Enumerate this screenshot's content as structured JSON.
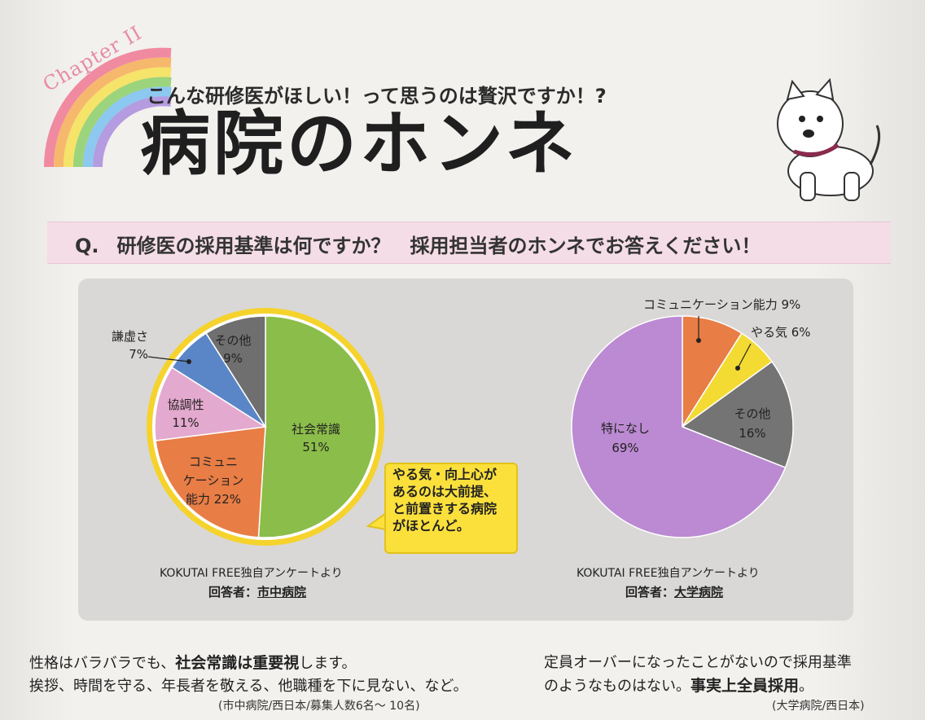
{
  "chapter": "Chapter II",
  "subtitle": "こんな研修医がほしい！って思うのは贅沢ですか！?",
  "title": "病院のホンネ",
  "question": {
    "label": "Q.",
    "text": "研修医の採用基準は何ですか？　採用担当者のホンネでお答えください！"
  },
  "colors": {
    "green": "#8bbd4a",
    "orange": "#e87d45",
    "pink": "#e4a9ce",
    "blue": "#5a86c7",
    "gray": "#6f6f6f",
    "purple": "#bb8ad2",
    "yellow": "#f3db33",
    "dark_gray": "#747474",
    "ring": "#f5d32c",
    "question_bar": "#f4dde6"
  },
  "chart_data": [
    {
      "type": "pie",
      "source": "KOKUTAI FREE独自アンケートより",
      "respondent_label": "回答者：",
      "respondent": "市中病院",
      "slices": [
        {
          "label_lines": [
            "社会常識",
            "51%"
          ],
          "value": 51,
          "color": "green"
        },
        {
          "label_lines": [
            "コミュニ",
            "ケーション",
            "能力 22%"
          ],
          "value": 22,
          "color": "orange"
        },
        {
          "label_lines": [
            "協調性",
            "11%"
          ],
          "value": 11,
          "color": "pink"
        },
        {
          "label_lines": [
            "謙虚さ",
            "7%"
          ],
          "value": 7,
          "color": "blue"
        },
        {
          "label_lines": [
            "その他",
            "9%"
          ],
          "value": 9,
          "color": "gray"
        }
      ],
      "callout": [
        "やる気・向上心が",
        "あるのは大前提、",
        "と前置きする病院",
        "がほとんど。"
      ]
    },
    {
      "type": "pie",
      "source": "KOKUTAI FREE独自アンケートより",
      "respondent_label": "回答者：",
      "respondent": "大学病院",
      "slices": [
        {
          "label_lines": [
            "コミュニケーション能力 9%"
          ],
          "value": 9,
          "color": "orange"
        },
        {
          "label_lines": [
            "やる気 6%"
          ],
          "value": 6,
          "color": "yellow"
        },
        {
          "label_lines": [
            "その他",
            "16%"
          ],
          "value": 16,
          "color": "dark_gray"
        },
        {
          "label_lines": [
            "特になし",
            "69%"
          ],
          "value": 69,
          "color": "purple"
        }
      ]
    }
  ],
  "quotes": {
    "left": {
      "line1_a": "性格はバラバラでも、",
      "line1_b": "社会常識は重要視",
      "line1_c": "します。",
      "line2": "挨拶、時間を守る、年長者を敬える、他職種を下に見ない、など。",
      "cite": "(市中病院/西日本/募集人数6名～ 10名)"
    },
    "right": {
      "line1": "定員オーバーになったことがないので採用基準",
      "line2_a": "のようなものはない。",
      "line2_b": "事実上全員採用",
      "line2_c": "。",
      "cite": "(大学病院/西日本)"
    }
  }
}
